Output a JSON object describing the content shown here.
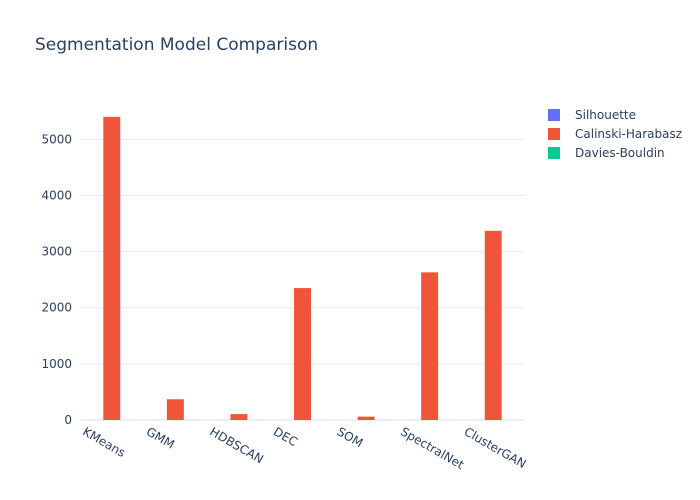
{
  "chart_data": {
    "type": "bar",
    "title": "Segmentation Model Comparison",
    "xlabel": "",
    "ylabel": "",
    "categories": [
      "KMeans",
      "GMM",
      "HDBSCAN",
      "DEC",
      "SOM",
      "SpectralNet",
      "ClusterGAN"
    ],
    "series": [
      {
        "name": "Silhouette",
        "color": "#636efa",
        "values": [
          0.42,
          0.35,
          0.38,
          0.45,
          0.3,
          0.41,
          0.44
        ]
      },
      {
        "name": "Calinski-Harabasz",
        "color": "#ef553b",
        "values": [
          5400,
          370,
          105,
          2350,
          60,
          2630,
          3370
        ]
      },
      {
        "name": "Davies-Bouldin",
        "color": "#00cc96",
        "values": [
          0.85,
          1.2,
          1.05,
          0.9,
          1.4,
          0.95,
          0.88
        ]
      }
    ],
    "ylim": [
      0,
      5700
    ],
    "yticks": [
      0,
      1000,
      2000,
      3000,
      4000,
      5000
    ],
    "ytick_labels": [
      "0",
      "1000",
      "2000",
      "3000",
      "4000",
      "5000"
    ],
    "grid": true,
    "legend_position": "top-right"
  }
}
